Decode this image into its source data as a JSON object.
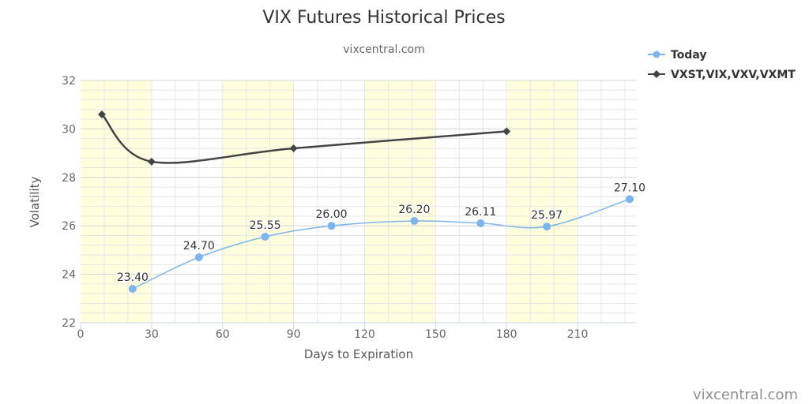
{
  "chart_data": {
    "type": "line",
    "title": "VIX Futures Historical Prices",
    "subtitle": "vixcentral.com",
    "xlabel": "Days to Expiration",
    "ylabel": "Volatility",
    "xlim": [
      0,
      235
    ],
    "ylim": [
      22,
      32
    ],
    "x_ticks": [
      0,
      30,
      60,
      90,
      120,
      150,
      180,
      210
    ],
    "y_ticks": [
      22,
      24,
      26,
      28,
      30,
      32
    ],
    "grid": true,
    "plot_bands": [
      [
        0,
        30
      ],
      [
        60,
        90
      ],
      [
        120,
        150
      ],
      [
        180,
        210
      ]
    ],
    "legend_position": "top-right",
    "series": [
      {
        "name": "Today",
        "color": "#7cb5ec",
        "marker": "circle",
        "x": [
          22,
          50,
          78,
          106,
          141,
          169,
          197,
          232
        ],
        "values": [
          23.4,
          24.7,
          25.55,
          26.0,
          26.2,
          26.11,
          25.97,
          27.1
        ],
        "labels": [
          "23.40",
          "24.70",
          "25.55",
          "26.00",
          "26.20",
          "26.11",
          "25.97",
          "27.10"
        ]
      },
      {
        "name": "VXST,VIX,VXV,VXMT",
        "color": "#434348",
        "marker": "diamond",
        "x": [
          9,
          30,
          90,
          180
        ],
        "values": [
          30.6,
          28.65,
          29.2,
          29.9
        ]
      }
    ],
    "colors": {
      "band": "#ffffdd",
      "grid": "#e6e6e6",
      "axis": "#ccd6eb"
    }
  },
  "credit": "vixcentral.com"
}
